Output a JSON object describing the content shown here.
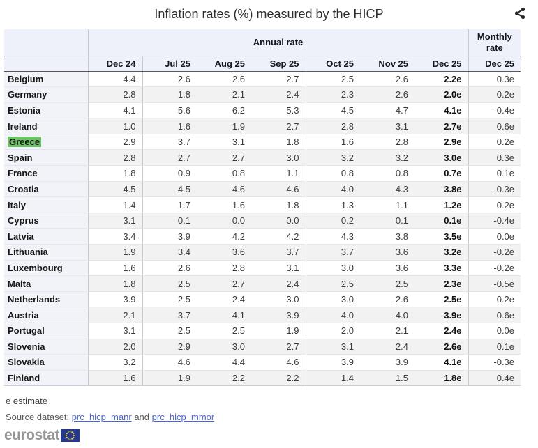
{
  "header": {
    "share_icon": "share-icon"
  },
  "chart_data": {
    "type": "table",
    "title": "Inflation rates (%) measured by the HICP",
    "column_groups": {
      "annual": "Annual rate",
      "monthly": "Monthly rate"
    },
    "columns": [
      "Dec 24",
      "Jul 25",
      "Aug 25",
      "Sep 25",
      "Oct 25",
      "Nov 25",
      "Dec 25",
      "Dec 25"
    ],
    "rows": [
      {
        "country": "Belgium",
        "highlight": false,
        "values": [
          "4.4",
          "2.6",
          "2.6",
          "2.7",
          "2.5",
          "2.6",
          "2.2e",
          "0.3e"
        ]
      },
      {
        "country": "Germany",
        "highlight": false,
        "values": [
          "2.8",
          "1.8",
          "2.1",
          "2.4",
          "2.3",
          "2.6",
          "2.0e",
          "0.2e"
        ]
      },
      {
        "country": "Estonia",
        "highlight": false,
        "values": [
          "4.1",
          "5.6",
          "6.2",
          "5.3",
          "4.5",
          "4.7",
          "4.1e",
          "-0.4e"
        ]
      },
      {
        "country": "Ireland",
        "highlight": false,
        "values": [
          "1.0",
          "1.6",
          "1.9",
          "2.7",
          "2.8",
          "3.1",
          "2.7e",
          "0.6e"
        ]
      },
      {
        "country": "Greece",
        "highlight": true,
        "values": [
          "2.9",
          "3.7",
          "3.1",
          "1.8",
          "1.6",
          "2.8",
          "2.9e",
          "0.2e"
        ]
      },
      {
        "country": "Spain",
        "highlight": false,
        "values": [
          "2.8",
          "2.7",
          "2.7",
          "3.0",
          "3.2",
          "3.2",
          "3.0e",
          "0.3e"
        ]
      },
      {
        "country": "France",
        "highlight": false,
        "values": [
          "1.8",
          "0.9",
          "0.8",
          "1.1",
          "0.8",
          "0.8",
          "0.7e",
          "0.1e"
        ]
      },
      {
        "country": "Croatia",
        "highlight": false,
        "values": [
          "4.5",
          "4.5",
          "4.6",
          "4.6",
          "4.0",
          "4.3",
          "3.8e",
          "-0.3e"
        ]
      },
      {
        "country": "Italy",
        "highlight": false,
        "values": [
          "1.4",
          "1.7",
          "1.6",
          "1.8",
          "1.3",
          "1.1",
          "1.2e",
          "0.2e"
        ]
      },
      {
        "country": "Cyprus",
        "highlight": false,
        "values": [
          "3.1",
          "0.1",
          "0.0",
          "0.0",
          "0.2",
          "0.1",
          "0.1e",
          "-0.4e"
        ]
      },
      {
        "country": "Latvia",
        "highlight": false,
        "values": [
          "3.4",
          "3.9",
          "4.2",
          "4.2",
          "4.3",
          "3.8",
          "3.5e",
          "0.0e"
        ]
      },
      {
        "country": "Lithuania",
        "highlight": false,
        "values": [
          "1.9",
          "3.4",
          "3.6",
          "3.7",
          "3.7",
          "3.6",
          "3.2e",
          "-0.2e"
        ]
      },
      {
        "country": "Luxembourg",
        "highlight": false,
        "values": [
          "1.6",
          "2.6",
          "2.8",
          "3.1",
          "3.0",
          "3.6",
          "3.3e",
          "-0.2e"
        ]
      },
      {
        "country": "Malta",
        "highlight": false,
        "values": [
          "1.8",
          "2.5",
          "2.7",
          "2.4",
          "2.5",
          "2.5",
          "2.3e",
          "-0.5e"
        ]
      },
      {
        "country": "Netherlands",
        "highlight": false,
        "values": [
          "3.9",
          "2.5",
          "2.4",
          "3.0",
          "3.0",
          "2.6",
          "2.5e",
          "0.2e"
        ]
      },
      {
        "country": "Austria",
        "highlight": false,
        "values": [
          "2.1",
          "3.7",
          "4.1",
          "3.9",
          "4.0",
          "4.0",
          "3.9e",
          "0.6e"
        ]
      },
      {
        "country": "Portugal",
        "highlight": false,
        "values": [
          "3.1",
          "2.5",
          "2.5",
          "1.9",
          "2.0",
          "2.1",
          "2.4e",
          "0.0e"
        ]
      },
      {
        "country": "Slovenia",
        "highlight": false,
        "values": [
          "2.0",
          "2.9",
          "3.0",
          "2.7",
          "3.1",
          "2.4",
          "2.6e",
          "0.1e"
        ]
      },
      {
        "country": "Slovakia",
        "highlight": false,
        "values": [
          "3.2",
          "4.6",
          "4.4",
          "4.6",
          "3.9",
          "3.9",
          "4.1e",
          "-0.3e"
        ]
      },
      {
        "country": "Finland",
        "highlight": false,
        "values": [
          "1.6",
          "1.9",
          "2.2",
          "2.2",
          "1.4",
          "1.5",
          "1.8e",
          "0.4e"
        ]
      }
    ]
  },
  "footer": {
    "footnote": "e estimate",
    "source_prefix": "Source dataset:",
    "source_link_1": "prc_hicp_manr",
    "source_conjunction": "and",
    "source_link_2": "prc_hicp_mmor",
    "logo_text": "eurostat"
  },
  "colors": {
    "highlight_green": "#6cc364",
    "link_blue": "#4a66cc",
    "header_bg": "#eef1fa",
    "flag_blue": "#24398c",
    "star_yellow": "#ffd617",
    "icon_dark": "#262626"
  }
}
